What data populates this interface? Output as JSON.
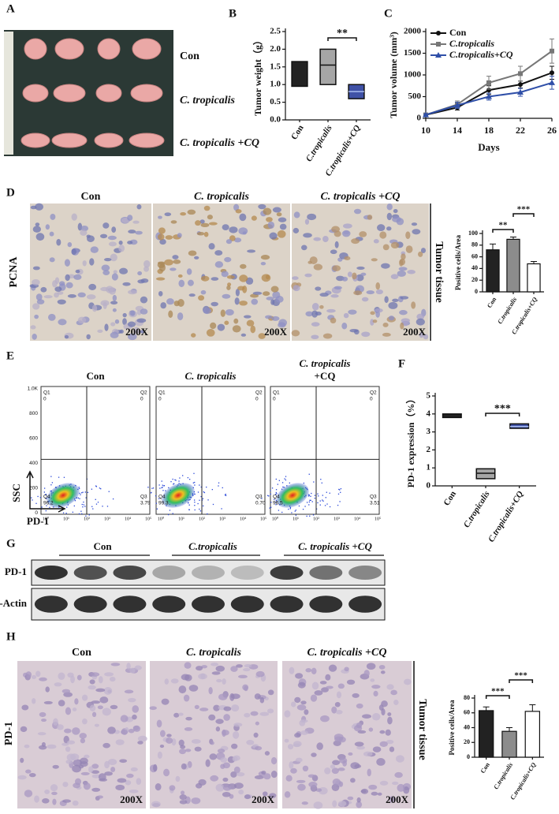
{
  "figure": {
    "A": {
      "label": "A",
      "groups": [
        "Con",
        "C. tropicalis",
        "C. tropicalis +CQ"
      ]
    },
    "D": {
      "label": "D",
      "titles": [
        "Con",
        "C. tropicalis",
        "C. tropicalis +CQ"
      ],
      "stain": "PCNA",
      "magnification": "200X",
      "tissue": "Tumor tissue"
    },
    "E": {
      "label": "E",
      "titles": [
        [
          "Con"
        ],
        [
          "C. tropicalis"
        ],
        [
          "C. tropicalis",
          "+CQ"
        ]
      ],
      "plots": [
        {
          "quadrants": [
            [
              "Q1",
              "0"
            ],
            [
              "Q2",
              "0"
            ],
            [
              "Q4",
              "96.2"
            ],
            [
              "Q3",
              "3.79"
            ]
          ]
        },
        {
          "quadrants": [
            [
              "Q1",
              "0"
            ],
            [
              "Q2",
              "0"
            ],
            [
              "Q4",
              "99.3"
            ],
            [
              "Q3",
              "0.70"
            ]
          ]
        },
        {
          "quadrants": [
            [
              "Q1",
              "0"
            ],
            [
              "Q2",
              "0"
            ],
            [
              "Q4",
              "96.5"
            ],
            [
              "Q3",
              "3.51"
            ]
          ]
        }
      ],
      "yticks": [
        "1.0K",
        "800",
        "600",
        "400",
        "200",
        "0"
      ],
      "xticks": [
        "10⁰",
        "10¹",
        "10²",
        "10³",
        "10⁴",
        "10⁵"
      ],
      "ylabel": "SSC",
      "xlabel": "PD-1"
    },
    "G": {
      "label": "G",
      "groups": [
        "Con",
        "C.tropicalis",
        "C. tropicalis +CQ"
      ],
      "rows": [
        "PD-1",
        "β-Actin"
      ]
    },
    "H": {
      "label": "H",
      "titles": [
        "Con",
        "C. tropicalis",
        "C. tropicalis +CQ"
      ],
      "stain": "PD-1",
      "magnification": "200X",
      "tissue": "Tumor tissue"
    }
  },
  "chart_data": [
    {
      "panel_label": "B",
      "type": "floating-bar",
      "ylabel": "Tumor weight（g）",
      "categories": [
        "Con",
        "C.tropicalis",
        "C.tropicalis+CQ"
      ],
      "low": [
        0.95,
        1.0,
        0.6
      ],
      "high": [
        1.65,
        2.0,
        1.0
      ],
      "mid": [
        null,
        1.55,
        0.8
      ],
      "colors": [
        "#222222",
        "#a6a6a6",
        "#3f51a6"
      ],
      "ylim": [
        0,
        2.5
      ],
      "yticks": [
        {
          "value": 0,
          "label": "0.0"
        },
        0.5,
        {
          "value": 1,
          "label": "1.0"
        },
        1.5,
        {
          "value": 2,
          "label": "2.0"
        },
        2.5
      ],
      "significance": [
        "**"
      ]
    },
    {
      "panel_label": "C",
      "type": "line",
      "ylabel": "Tumor volume (mm³)",
      "xlabel": "Days",
      "x": [
        10,
        14,
        18,
        22,
        26
      ],
      "xlim": [
        10,
        26
      ],
      "xticks": [
        10,
        14,
        18,
        22,
        26
      ],
      "ylim": [
        0,
        2000
      ],
      "yticks": [
        0,
        500,
        1000,
        1500,
        2000
      ],
      "series": [
        {
          "name": "Con",
          "color": "#111111",
          "marker": "circle",
          "values": [
            80,
            250,
            650,
            780,
            1050
          ],
          "errors": [
            20,
            60,
            100,
            80,
            150
          ]
        },
        {
          "name": "C.tropicalis",
          "color": "#777777",
          "marker": "square",
          "values": [
            80,
            320,
            820,
            1030,
            1550
          ],
          "errors": [
            20,
            80,
            150,
            170,
            280
          ]
        },
        {
          "name": "C.tropicalis+CQ",
          "color": "#2f4fa8",
          "marker": "triangle",
          "values": [
            80,
            300,
            500,
            600,
            820
          ],
          "errors": [
            20,
            70,
            80,
            90,
            150
          ]
        }
      ]
    },
    {
      "type": "bar",
      "ylabel": "Positive cells/Area",
      "categories": [
        "Con",
        "C.tropicalis",
        "C.tropicalis+CQ"
      ],
      "values": [
        72,
        90,
        48
      ],
      "errors": [
        10,
        4,
        4
      ],
      "colors": [
        "#222222",
        "#8c8c8c",
        "#ffffff"
      ],
      "ylim": [
        0,
        100
      ],
      "yticks": [
        0,
        20,
        40,
        60,
        80,
        100
      ],
      "significance": [
        "**",
        "***"
      ]
    },
    {
      "panel_label": "F",
      "type": "floating-bar",
      "ylabel": "PD-1 expression（%）",
      "categories": [
        "Con",
        "C.tropicalis",
        "C.tropicalis+CQ"
      ],
      "low": [
        3.8,
        0.4,
        3.2
      ],
      "high": [
        4.0,
        0.95,
        3.45
      ],
      "mid": [
        null,
        0.7,
        3.3
      ],
      "colors": [
        "#222222",
        "#a6a6a6",
        "#3f51a6"
      ],
      "ylim": [
        0,
        5
      ],
      "yticks": [
        0,
        1,
        2,
        3,
        4,
        5
      ],
      "significance": [
        "***"
      ]
    },
    {
      "type": "bar",
      "ylabel": "Positive cells/Area",
      "categories": [
        "Con",
        "C.tropicalis",
        "C.tropicalis+CQ"
      ],
      "values": [
        63,
        35,
        62
      ],
      "errors": [
        5,
        5,
        9
      ],
      "colors": [
        "#222222",
        "#8c8c8c",
        "#ffffff"
      ],
      "ylim": [
        0,
        80
      ],
      "yticks": [
        0,
        20,
        40,
        60,
        80
      ],
      "significance": [
        "***",
        "***"
      ]
    }
  ]
}
